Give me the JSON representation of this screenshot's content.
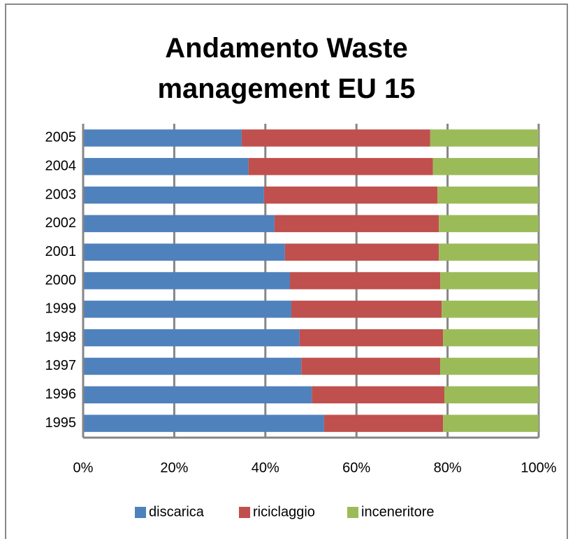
{
  "chart_data": {
    "type": "stacked-bar-horizontal",
    "title": "Andamento Waste management EU 15",
    "categories": [
      "1995",
      "1996",
      "1997",
      "1998",
      "1999",
      "2000",
      "2001",
      "2002",
      "2003",
      "2004",
      "2005"
    ],
    "series": [
      {
        "name": "discarica",
        "color": "#4f81bd",
        "values": [
          52.9,
          50.2,
          47.9,
          47.5,
          45.7,
          45.4,
          44.3,
          42.0,
          39.7,
          36.3,
          34.8
        ]
      },
      {
        "name": "riciclaggio",
        "color": "#c0504d",
        "values": [
          26.1,
          29.1,
          30.5,
          31.5,
          33.0,
          33.0,
          33.8,
          36.1,
          38.1,
          40.5,
          41.4
        ]
      },
      {
        "name": "inceneritore",
        "color": "#9bbb59",
        "values": [
          21.0,
          20.7,
          21.6,
          21.0,
          21.3,
          21.6,
          21.9,
          21.9,
          22.2,
          23.2,
          23.8
        ]
      }
    ],
    "xlim": [
      0,
      100
    ],
    "xticks": [
      {
        "value": 0,
        "label": "0%"
      },
      {
        "value": 20,
        "label": "20%"
      },
      {
        "value": 40,
        "label": "40%"
      },
      {
        "value": 60,
        "label": "60%"
      },
      {
        "value": 80,
        "label": "80%"
      },
      {
        "value": 100,
        "label": "100%"
      }
    ],
    "grid": true,
    "legend": "bottom"
  }
}
